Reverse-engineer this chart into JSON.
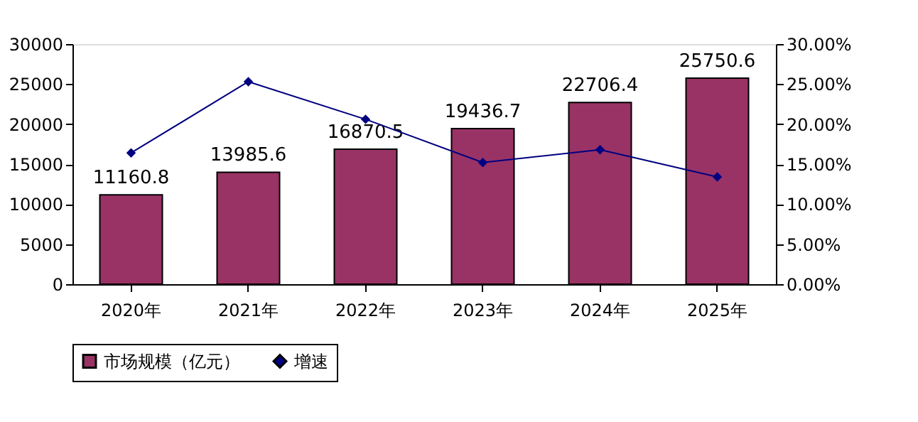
{
  "chart_data": {
    "type": "bar",
    "categories": [
      "2020年",
      "2021年",
      "2022年",
      "2023年",
      "2024年",
      "2025年"
    ],
    "series": [
      {
        "name": "市场规模（亿元）",
        "color": "#993366",
        "values": [
          11160.8,
          13985.6,
          16870.5,
          19436.7,
          22706.4,
          25750.6
        ],
        "value_labels": [
          "11160.8",
          "13985.6",
          "16870.5",
          "19436.7",
          "22706.4",
          "25750.6"
        ]
      },
      {
        "name": "增速",
        "type": "line",
        "axis": "y2",
        "color": "#000080",
        "marker": "diamond",
        "values": [
          16.4,
          25.3,
          20.6,
          15.2,
          16.8,
          13.4
        ]
      }
    ],
    "ylim": [
      0,
      30000
    ],
    "yticks": [
      0,
      5000,
      10000,
      15000,
      20000,
      25000,
      30000
    ],
    "y2lim": [
      0,
      30
    ],
    "y2ticks": [
      {
        "value": 0,
        "label": "0.00%"
      },
      {
        "value": 5,
        "label": "5.00%"
      },
      {
        "value": 10,
        "label": "10.00%"
      },
      {
        "value": 15,
        "label": "15.00%"
      },
      {
        "value": 20,
        "label": "20.00%"
      },
      {
        "value": 25,
        "label": "25.00%"
      },
      {
        "value": 30,
        "label": "30.00%"
      }
    ],
    "grid": false,
    "legend": "bottom"
  }
}
